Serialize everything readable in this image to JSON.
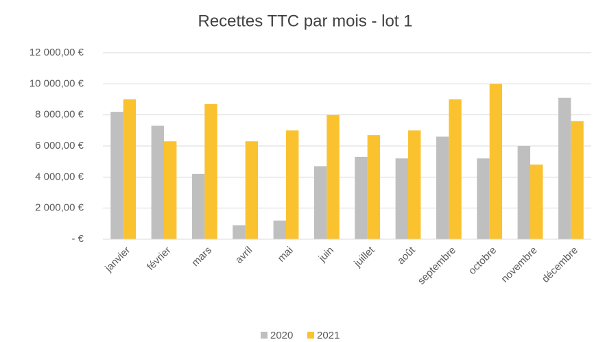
{
  "chart_data": {
    "type": "bar",
    "title": "Recettes TTC par mois - lot 1",
    "categories": [
      "janvier",
      "février",
      "mars",
      "avril",
      "mai",
      "juin",
      "juillet",
      "août",
      "septembre",
      "octobre",
      "novembre",
      "décembre"
    ],
    "series": [
      {
        "name": "2020",
        "color": "#bfbfbf",
        "values": [
          8200,
          7300,
          4200,
          900,
          1200,
          4700,
          5300,
          5200,
          6600,
          5200,
          6000,
          9100
        ]
      },
      {
        "name": "2021",
        "color": "#fbc230",
        "values": [
          9000,
          6300,
          8700,
          6300,
          7000,
          8000,
          6700,
          7000,
          9000,
          10000,
          4800,
          7600
        ]
      }
    ],
    "ylim": [
      0,
      12000
    ],
    "yticks": [
      {
        "value": 0,
        "label": "-   €"
      },
      {
        "value": 2000,
        "label": "2 000,00 €"
      },
      {
        "value": 4000,
        "label": "4 000,00 €"
      },
      {
        "value": 6000,
        "label": "6 000,00 €"
      },
      {
        "value": 8000,
        "label": "8 000,00 €"
      },
      {
        "value": 10000,
        "label": "10 000,00 €"
      },
      {
        "value": 12000,
        "label": "12 000,00 €"
      }
    ],
    "grid": true,
    "legend": "bottom"
  }
}
